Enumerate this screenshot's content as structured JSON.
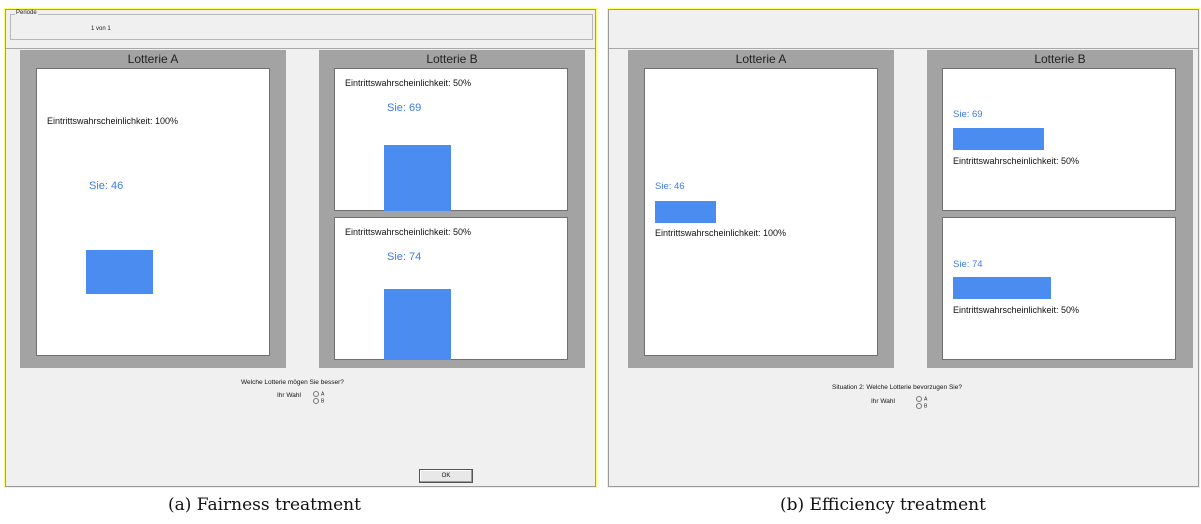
{
  "left": {
    "periode_label": "Periode",
    "periode_value": "1   von   1",
    "lottery_a": {
      "title": "Lotterie A",
      "prob": "Eintrittswahrscheinlichkeit: 100%",
      "sie": "Sie: 46"
    },
    "lottery_b": {
      "title": "Lotterie B",
      "top": {
        "prob": "Eintrittswahrscheinlichkeit: 50%",
        "sie": "Sie: 69"
      },
      "bottom": {
        "prob": "Eintrittswahrscheinlichkeit: 50%",
        "sie": "Sie: 74"
      }
    },
    "question": "Welche Lotterie mögen Sie besser?",
    "choice_label": "Ihr Wahl",
    "option_a": "A",
    "option_b": "B",
    "ok_label": "OK",
    "caption": "(a) Fairness treatment"
  },
  "right": {
    "lottery_a": {
      "title": "Lotterie A",
      "prob": "Eintrittswahrscheinlichkeit: 100%",
      "sie": "Sie: 46"
    },
    "lottery_b": {
      "title": "Lotterie B",
      "top": {
        "prob": "Eintrittswahrscheinlichkeit: 50%",
        "sie": "Sie: 69"
      },
      "bottom": {
        "prob": "Eintrittswahrscheinlichkeit: 50%",
        "sie": "Sie: 74"
      }
    },
    "question": "Situation 2: Welche Lotterie bevorzugen Sie?",
    "choice_label": "Ihr Wahl",
    "option_a": "A",
    "option_b": "B",
    "caption": "(b) Efficiency treatment"
  },
  "colors": {
    "bar": "#4b8cf0",
    "sie_text": "#3b7bf0",
    "frame": "#ffff66",
    "lottery_bg": "#a3a3a3"
  }
}
